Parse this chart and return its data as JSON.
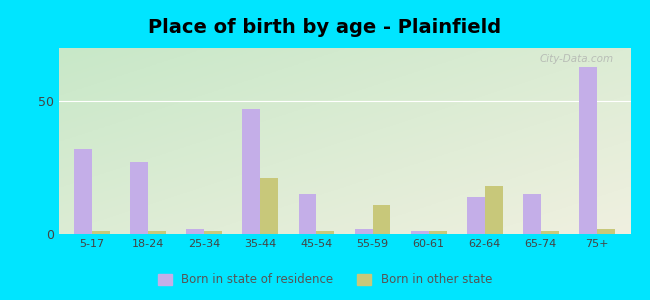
{
  "title": "Place of birth by age - Plainfield",
  "categories": [
    "5-17",
    "18-24",
    "25-34",
    "35-44",
    "45-54",
    "55-59",
    "60-61",
    "62-64",
    "65-74",
    "75+"
  ],
  "born_in_state": [
    32,
    27,
    2,
    47,
    15,
    2,
    1,
    14,
    15,
    63
  ],
  "born_other_state": [
    1,
    1,
    1,
    21,
    1,
    11,
    1,
    18,
    1,
    2
  ],
  "color_state": "#c4aee8",
  "color_other": "#c8c87a",
  "background_outer": "#00e5ff",
  "bg_top_left": "#c8e8c8",
  "bg_bottom_right": "#f0f0e0",
  "ylim": [
    0,
    70
  ],
  "yticks": [
    0,
    50
  ],
  "legend_label_state": "Born in state of residence",
  "legend_label_other": "Born in other state",
  "title_fontsize": 14,
  "bar_width": 0.32,
  "watermark": "City-Data.com"
}
